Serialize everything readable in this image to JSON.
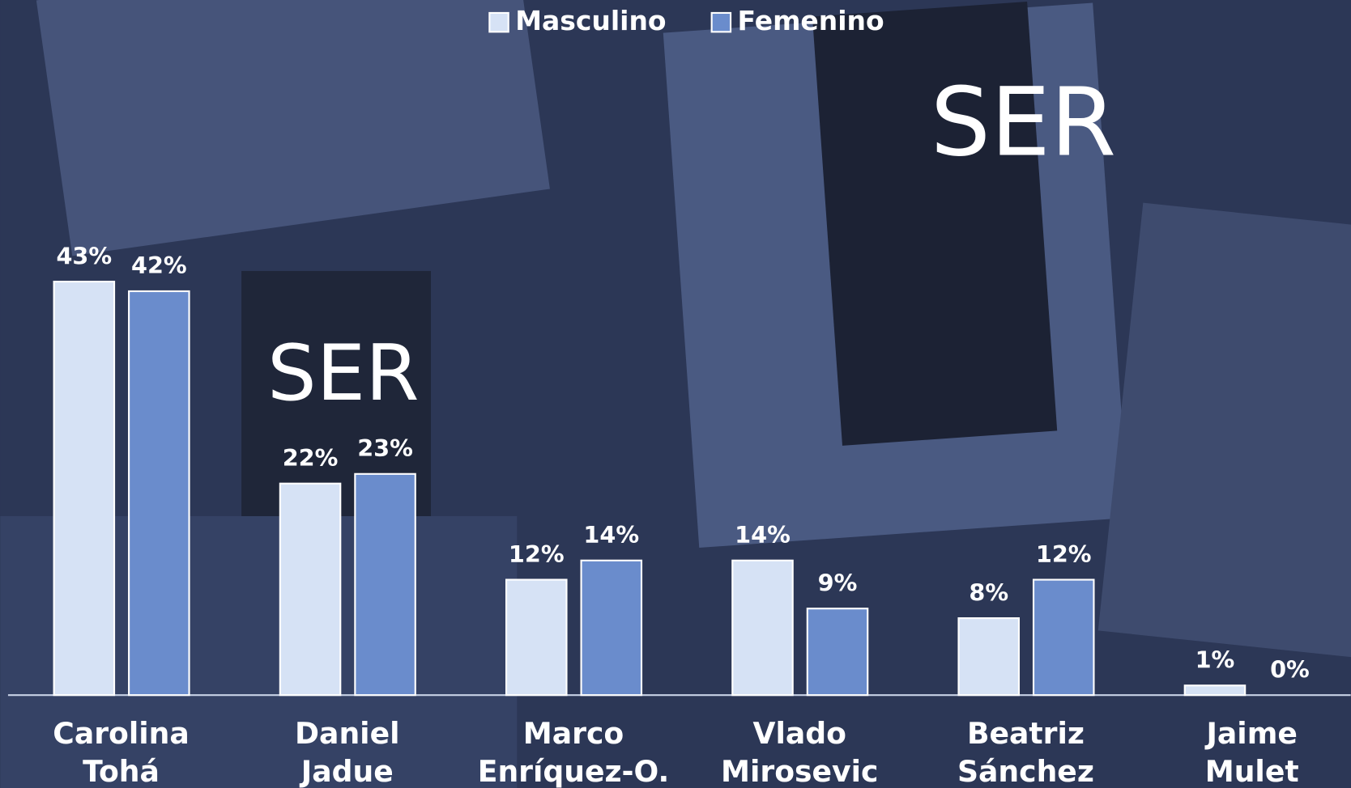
{
  "chart_data": {
    "type": "bar",
    "categories": [
      "Carolina Tohá",
      "Daniel Jadue",
      "Marco Enríquez-O.",
      "Vlado Mirosevic",
      "Beatriz Sánchez",
      "Jaime Mulet"
    ],
    "series": [
      {
        "name": "Masculino",
        "color": "#d6e2f5",
        "values": [
          43,
          22,
          12,
          14,
          8,
          1
        ],
        "value_labels": [
          "43%",
          "22%",
          "12%",
          "14%",
          "8%",
          "1%"
        ]
      },
      {
        "name": "Femenino",
        "color": "#6a8ccc",
        "values": [
          42,
          23,
          14,
          9,
          12,
          0
        ],
        "value_labels": [
          "42%",
          "23%",
          "14%",
          "9%",
          "12%",
          "0%"
        ]
      }
    ],
    "ylim": [
      0,
      45
    ],
    "legend": "top"
  }
}
